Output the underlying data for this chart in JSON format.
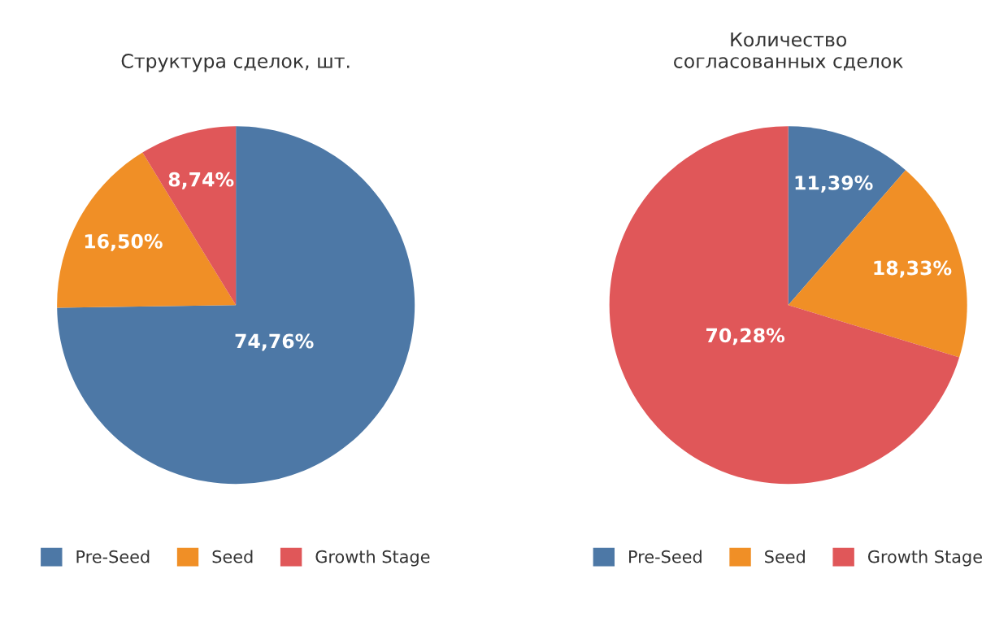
{
  "chart_data": [
    {
      "type": "pie",
      "title": "Структура сделок, шт.",
      "categories": [
        "Pre-Seed",
        "Seed",
        "Growth Stage"
      ],
      "values": [
        74.76,
        16.5,
        8.74
      ],
      "colors": [
        "#4d78a6",
        "#f08f26",
        "#e05759"
      ],
      "value_labels": [
        "74,76%",
        "16,50%",
        "8,74%"
      ],
      "legend": "bottom"
    },
    {
      "type": "pie",
      "title": "Количество\nсогласованных сделок",
      "categories": [
        "Pre-Seed",
        "Seed",
        "Growth Stage"
      ],
      "values": [
        11.39,
        18.33,
        70.28
      ],
      "colors": [
        "#4d78a6",
        "#f08f26",
        "#e05759"
      ],
      "value_labels": [
        "11,39%",
        "18,33%",
        "70,28%"
      ],
      "legend": "bottom"
    }
  ]
}
